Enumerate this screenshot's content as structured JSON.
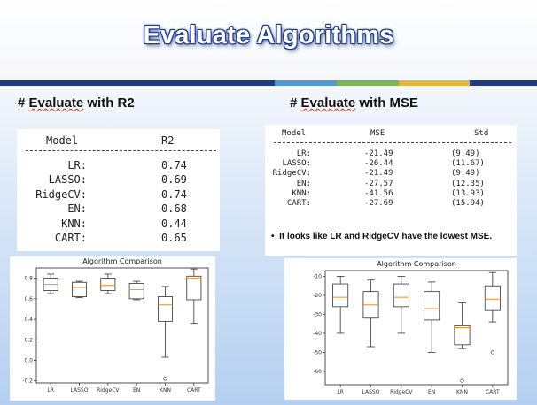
{
  "slide": {
    "title": "Evaluate Algorithms",
    "accent_colors": [
      "#1f3b86",
      "#1f3b86",
      "#4f9ad6",
      "#7ab55c",
      "#e2b73b",
      "#1f3b86"
    ]
  },
  "r2": {
    "heading_prefix": "# ",
    "heading_word": "Evaluate",
    "heading_rest": " with R2",
    "table": {
      "col_model": "Model",
      "col_r2": "R2",
      "rule": "----------------------------",
      "rows": [
        {
          "model": "LR:",
          "r2": "0.74"
        },
        {
          "model": "LASSO:",
          "r2": "0.69"
        },
        {
          "model": "RidgeCV:",
          "r2": "0.74"
        },
        {
          "model": "EN:",
          "r2": "0.68"
        },
        {
          "model": "KNN:",
          "r2": "0.44"
        },
        {
          "model": "CART:",
          "r2": "0.65"
        }
      ]
    }
  },
  "mse": {
    "heading_prefix": "# ",
    "heading_word": "Evaluate",
    "heading_rest": " with MSE",
    "table": {
      "col_model": "Model",
      "col_mse": "MSE",
      "col_std": "Std",
      "rule": "-----------------------------------------------",
      "rows": [
        {
          "model": "LR:",
          "mse": "-21.49",
          "std": "(9.49)"
        },
        {
          "model": "LASSO:",
          "mse": "-26.44",
          "std": "(11.67)"
        },
        {
          "model": "RidgeCV:",
          "mse": "-21.49",
          "std": "(9.49)"
        },
        {
          "model": "EN:",
          "mse": "-27.57",
          "std": "(12.35)"
        },
        {
          "model": "KNN:",
          "mse": "-41.56",
          "std": "(13.93)"
        },
        {
          "model": "CART:",
          "mse": "-27.69",
          "std": "(15.94)"
        }
      ]
    },
    "bullet": "•",
    "note": "It looks like LR and RidgeCV have the lowest MSE."
  },
  "chart_data": [
    {
      "type": "boxplot",
      "title": "Algorithm Comparison",
      "categories": [
        "LR",
        "LASSO",
        "RidgeCV",
        "EN",
        "KNN",
        "CART"
      ],
      "ylim": [
        -0.22,
        0.9
      ],
      "yticks": [
        -0.2,
        0.0,
        0.2,
        0.4,
        0.6,
        0.8
      ],
      "ytick_labels": [
        "-0.2",
        "0.0",
        "0.2",
        "0.4",
        "0.6",
        "0.8"
      ],
      "boxes": [
        {
          "whislo": 0.65,
          "q1": 0.68,
          "med": 0.74,
          "q3": 0.8,
          "whishi": 0.84,
          "fliers": []
        },
        {
          "whislo": 0.61,
          "q1": 0.62,
          "med": 0.71,
          "q3": 0.76,
          "whishi": 0.77,
          "fliers": []
        },
        {
          "whislo": 0.65,
          "q1": 0.68,
          "med": 0.73,
          "q3": 0.8,
          "whishi": 0.84,
          "fliers": []
        },
        {
          "whislo": 0.59,
          "q1": 0.6,
          "med": 0.69,
          "q3": 0.75,
          "whishi": 0.77,
          "fliers": []
        },
        {
          "whislo": 0.03,
          "q1": 0.38,
          "med": 0.54,
          "q3": 0.62,
          "whishi": 0.72,
          "fliers": [
            -0.18
          ]
        },
        {
          "whislo": 0.36,
          "q1": 0.59,
          "med": 0.8,
          "q3": 0.82,
          "whishi": 0.89,
          "fliers": []
        }
      ],
      "box_color": "#333333",
      "median_color": "#f28e2b"
    },
    {
      "type": "boxplot",
      "title": "Algorithm Comparison",
      "categories": [
        "LR",
        "LASSO",
        "RidgeCV",
        "EN",
        "KNN",
        "CART"
      ],
      "ylim": [
        -67,
        -7
      ],
      "yticks": [
        -60,
        -50,
        -40,
        -30,
        -20,
        -10
      ],
      "ytick_labels": [
        "-60",
        "-50",
        "-40",
        "-30",
        "-20",
        "-10"
      ],
      "boxes": [
        {
          "whislo": -40,
          "q1": -26,
          "med": -21,
          "q3": -14,
          "whishi": -10,
          "fliers": []
        },
        {
          "whislo": -47,
          "q1": -32,
          "med": -25,
          "q3": -18,
          "whishi": -12,
          "fliers": []
        },
        {
          "whislo": -40,
          "q1": -26,
          "med": -21,
          "q3": -14,
          "whishi": -10,
          "fliers": []
        },
        {
          "whislo": -50,
          "q1": -33,
          "med": -27,
          "q3": -18,
          "whishi": -13,
          "fliers": []
        },
        {
          "whislo": -48,
          "q1": -46,
          "med": -37,
          "q3": -36,
          "whishi": -24,
          "fliers": [
            -65
          ]
        },
        {
          "whislo": -34,
          "q1": -28,
          "med": -22,
          "q3": -15,
          "whishi": -8,
          "fliers": [
            -50
          ]
        }
      ],
      "box_color": "#333333",
      "median_color": "#f28e2b"
    }
  ]
}
